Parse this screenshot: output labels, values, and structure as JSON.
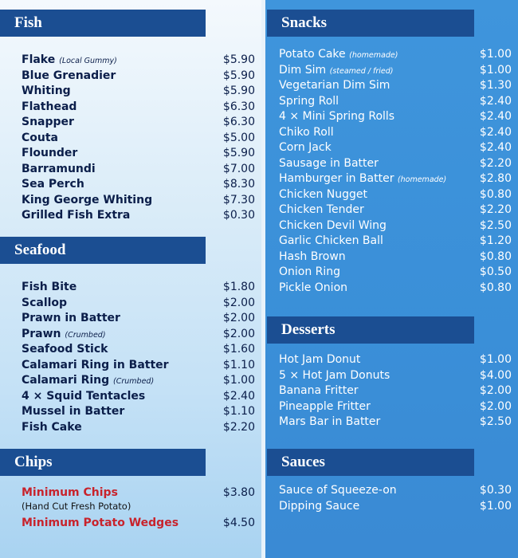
{
  "left": [
    {
      "title": "Fish",
      "items": [
        {
          "name": "Flake",
          "note": "(Local Gummy)",
          "price": "$5.90"
        },
        {
          "name": "Blue Grenadier",
          "price": "$5.90"
        },
        {
          "name": "Whiting",
          "price": "$5.90"
        },
        {
          "name": "Flathead",
          "price": "$6.30"
        },
        {
          "name": "Snapper",
          "price": "$6.30"
        },
        {
          "name": "Couta",
          "price": "$5.00"
        },
        {
          "name": "Flounder",
          "price": "$5.90"
        },
        {
          "name": "Barramundi",
          "price": "$7.00"
        },
        {
          "name": "Sea Perch",
          "price": "$8.30"
        },
        {
          "name": "King George Whiting",
          "price": "$7.30"
        },
        {
          "name": "Grilled Fish Extra",
          "price": "$0.30"
        }
      ]
    },
    {
      "title": "Seafood",
      "items": [
        {
          "name": "Fish Bite",
          "price": "$1.80"
        },
        {
          "name": "Scallop",
          "price": "$2.00"
        },
        {
          "name": "Prawn in Batter",
          "price": "$2.00"
        },
        {
          "name": "Prawn",
          "note": "(Crumbed)",
          "price": "$2.00"
        },
        {
          "name": "Seafood Stick",
          "price": "$1.60"
        },
        {
          "name": "Calamari Ring in Batter",
          "price": "$1.10"
        },
        {
          "name": "Calamari Ring",
          "note": "(Crumbed)",
          "price": "$1.00"
        },
        {
          "name": "4 × Squid Tentacles",
          "price": "$2.40"
        },
        {
          "name": "Mussel in Batter",
          "price": "$1.10"
        },
        {
          "name": "Fish Cake",
          "price": "$2.20"
        }
      ]
    },
    {
      "title": "Chips",
      "items": [
        {
          "name": "Minimum Chips",
          "sub": "(Hand Cut Fresh Potato)",
          "price": "$3.80"
        },
        {
          "name": "Minimum Potato Wedges",
          "price": "$4.50"
        }
      ]
    }
  ],
  "right": [
    {
      "title": "Snacks",
      "items": [
        {
          "name": "Potato Cake",
          "note": "(homemade)",
          "price": "$1.00"
        },
        {
          "name": "Dim Sim",
          "note": "(steamed / fried)",
          "price": "$1.00"
        },
        {
          "name": "Vegetarian Dim Sim",
          "price": "$1.30"
        },
        {
          "name": "Spring Roll",
          "price": "$2.40"
        },
        {
          "name": "4 × Mini Spring Rolls",
          "price": "$2.40"
        },
        {
          "name": "Chiko Roll",
          "price": "$2.40"
        },
        {
          "name": "Corn Jack",
          "price": "$2.40"
        },
        {
          "name": "Sausage in Batter",
          "price": "$2.20"
        },
        {
          "name": "Hamburger in Batter",
          "note": "(homemade)",
          "price": "$2.80"
        },
        {
          "name": "Chicken Nugget",
          "price": "$0.80"
        },
        {
          "name": "Chicken Tender",
          "price": "$2.20"
        },
        {
          "name": "Chicken Devil Wing",
          "price": "$2.50"
        },
        {
          "name": "Garlic Chicken Ball",
          "price": "$1.20"
        },
        {
          "name": "Hash Brown",
          "price": "$0.80"
        },
        {
          "name": "Onion Ring",
          "price": "$0.50"
        },
        {
          "name": "Pickle Onion",
          "price": "$0.80"
        }
      ]
    },
    {
      "title": "Desserts",
      "items": [
        {
          "name": "Hot Jam Donut",
          "price": "$1.00"
        },
        {
          "name": "5 × Hot Jam Donuts",
          "price": "$4.00"
        },
        {
          "name": "Banana Fritter",
          "price": "$2.00"
        },
        {
          "name": "Pineapple Fritter",
          "price": "$2.00"
        },
        {
          "name": "Mars Bar in Batter",
          "price": "$2.50"
        }
      ]
    },
    {
      "title": "Sauces",
      "items": [
        {
          "name": "Sauce of Squeeze-on",
          "price": "$0.30"
        },
        {
          "name": "Dipping Sauce",
          "price": "$1.00"
        }
      ]
    }
  ]
}
